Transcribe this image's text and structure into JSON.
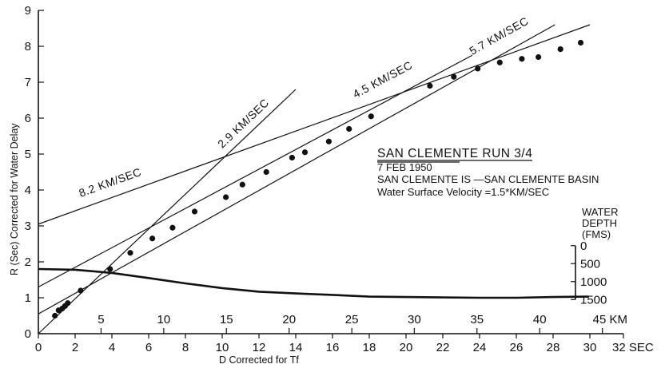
{
  "chart_data": {
    "type": "scatter",
    "xlabel": "D Corrected for Tf",
    "ylabel": "R (Sec) Corrected for Water Delay",
    "xlim": [
      0,
      32
    ],
    "ylim": [
      0,
      9
    ],
    "x_ticks": [
      0,
      2,
      4,
      6,
      8,
      10,
      12,
      14,
      16,
      18,
      20,
      22,
      24,
      26,
      28,
      30
    ],
    "x_tick_labels": [
      "0",
      "2",
      "4",
      "6",
      "8",
      "10",
      "12",
      "14",
      "16",
      "18",
      "20",
      "22",
      "24",
      "26",
      "28",
      "30"
    ],
    "x_end_label": "32 SEC",
    "y_ticks": [
      0,
      1,
      2,
      3,
      4,
      5,
      6,
      7,
      8,
      9
    ],
    "y_tick_labels": [
      "0",
      "1",
      "2",
      "3",
      "4",
      "5",
      "6",
      "7",
      "8",
      "9"
    ],
    "km_scale": {
      "ticks_sec": [
        3.41,
        6.82,
        10.23,
        13.64,
        17.05,
        20.45,
        23.86,
        27.27,
        30.68
      ],
      "labels": [
        "5",
        "10",
        "15",
        "20",
        "25",
        "30",
        "35",
        "40",
        "45 KM"
      ]
    },
    "points": [
      {
        "x": 0.9,
        "y": 0.5
      },
      {
        "x": 1.1,
        "y": 0.65
      },
      {
        "x": 1.3,
        "y": 0.7
      },
      {
        "x": 1.45,
        "y": 0.77
      },
      {
        "x": 1.6,
        "y": 0.85
      },
      {
        "x": 2.3,
        "y": 1.2
      },
      {
        "x": 3.9,
        "y": 1.8
      },
      {
        "x": 5.0,
        "y": 2.25
      },
      {
        "x": 6.2,
        "y": 2.65
      },
      {
        "x": 7.3,
        "y": 2.95
      },
      {
        "x": 8.5,
        "y": 3.4
      },
      {
        "x": 10.2,
        "y": 3.8
      },
      {
        "x": 11.1,
        "y": 4.15
      },
      {
        "x": 12.4,
        "y": 4.5
      },
      {
        "x": 13.8,
        "y": 4.9
      },
      {
        "x": 14.5,
        "y": 5.05
      },
      {
        "x": 15.8,
        "y": 5.35
      },
      {
        "x": 16.9,
        "y": 5.7
      },
      {
        "x": 18.1,
        "y": 6.05
      },
      {
        "x": 21.3,
        "y": 6.9
      },
      {
        "x": 22.6,
        "y": 7.15
      },
      {
        "x": 23.9,
        "y": 7.38
      },
      {
        "x": 25.1,
        "y": 7.55
      },
      {
        "x": 26.3,
        "y": 7.65
      },
      {
        "x": 27.2,
        "y": 7.7
      },
      {
        "x": 28.4,
        "y": 7.92
      },
      {
        "x": 29.5,
        "y": 8.1
      }
    ],
    "fit_lines": [
      {
        "label": "2.9 KM/SEC",
        "from": [
          0,
          0
        ],
        "to": [
          14.0,
          6.8
        ]
      },
      {
        "label": "4.5 KM/SEC",
        "from": [
          0,
          1.3
        ],
        "to": [
          23.6,
          7.75
        ]
      },
      {
        "label": "5.7 KM/SEC",
        "from": [
          0,
          0.55
        ],
        "to": [
          28.1,
          8.6
        ]
      },
      {
        "label": "8.2 KM/SEC",
        "from": [
          0,
          3.05
        ],
        "to": [
          30.0,
          8.6
        ]
      }
    ],
    "depth_axis": {
      "title": [
        "WATER",
        "DEPTH",
        "(FMS)"
      ],
      "ticks": [
        {
          "value": 0,
          "label": "0",
          "r": 2.45
        },
        {
          "value": 500,
          "label": "500",
          "r": 1.95
        },
        {
          "value": 1000,
          "label": "1000",
          "r": 1.45
        },
        {
          "value": 1500,
          "label": "1500",
          "r": 0.95
        }
      ]
    },
    "depth_profile": [
      {
        "d": 0,
        "fms": 650
      },
      {
        "d": 2,
        "fms": 670
      },
      {
        "d": 4,
        "fms": 760
      },
      {
        "d": 6,
        "fms": 900
      },
      {
        "d": 8,
        "fms": 1050
      },
      {
        "d": 10,
        "fms": 1180
      },
      {
        "d": 12,
        "fms": 1280
      },
      {
        "d": 14,
        "fms": 1330
      },
      {
        "d": 16,
        "fms": 1370
      },
      {
        "d": 18,
        "fms": 1420
      },
      {
        "d": 20,
        "fms": 1430
      },
      {
        "d": 22,
        "fms": 1440
      },
      {
        "d": 24,
        "fms": 1450
      },
      {
        "d": 26,
        "fms": 1450
      },
      {
        "d": 28,
        "fms": 1430
      },
      {
        "d": 29.9,
        "fms": 1420
      }
    ],
    "annotation": {
      "title": "SAN CLEMENTE RUN 3/4",
      "date": "7 FEB 1950",
      "line1": "SAN CLEMENTE IS —SAN CLEMENTE BASIN",
      "line2": "Water Surface Velocity =1.5*KM/SEC"
    }
  }
}
